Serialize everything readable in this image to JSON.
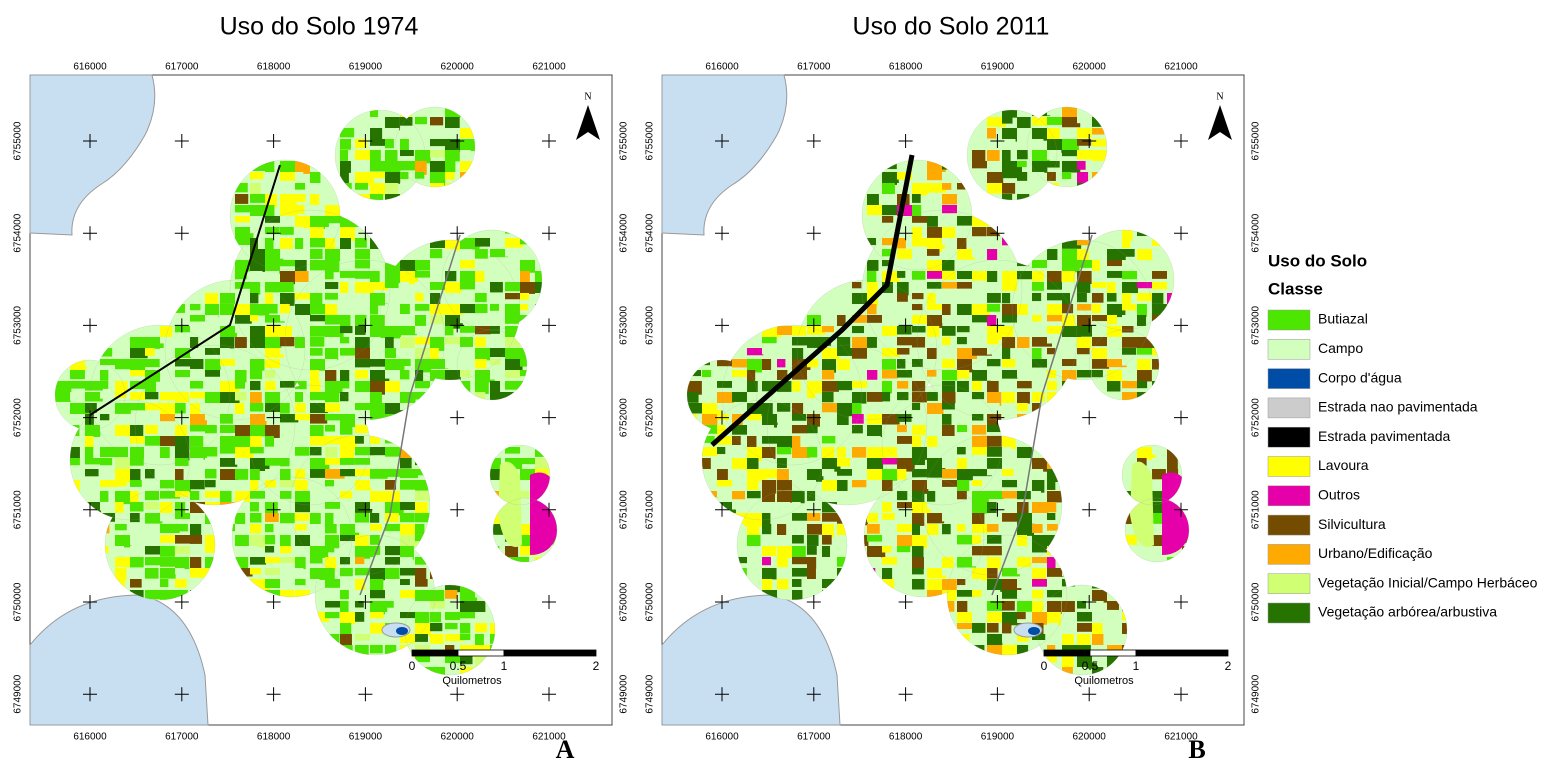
{
  "maps": [
    {
      "title": "Uso do Solo 1974",
      "panel": "A",
      "north": "N",
      "xticks": [
        616000,
        617000,
        618000,
        619000,
        620000,
        621000
      ],
      "yticks": [
        6755000,
        6754000,
        6753000,
        6752000,
        6751000,
        6750000,
        6749000
      ],
      "scale_ticks": [
        0,
        0.5,
        1,
        2
      ],
      "scale_unit": "Quilometros"
    },
    {
      "title": "Uso do Solo 2011",
      "panel": "B",
      "north": "N",
      "xticks": [
        616000,
        617000,
        618000,
        619000,
        620000,
        621000
      ],
      "yticks": [
        6755000,
        6754000,
        6753000,
        6752000,
        6751000,
        6750000,
        6749000
      ],
      "scale_ticks": [
        0,
        0.5,
        1,
        2
      ],
      "scale_unit": "Quilometros"
    }
  ],
  "legend": {
    "title": "Uso do Solo",
    "subtitle": "Classe",
    "items": [
      {
        "name": "Butiazal",
        "color": "#4ce600"
      },
      {
        "name": "Campo",
        "color": "#d3ffbe"
      },
      {
        "name": "Corpo d'água",
        "color": "#004da8"
      },
      {
        "name": "Estrada nao pavimentada",
        "color": "#cccccc"
      },
      {
        "name": "Estrada pavimentada",
        "color": "#000000"
      },
      {
        "name": "Lavoura",
        "color": "#ffff00"
      },
      {
        "name": "Outros",
        "color": "#e600a9"
      },
      {
        "name": "Silvicultura",
        "color": "#734c00"
      },
      {
        "name": "Urbano/Edificação",
        "color": "#ffaa00"
      },
      {
        "name": "Vegetação Inicial/Campo Herbáceo",
        "color": "#d1ff73"
      },
      {
        "name": "Vegetação arbórea/arbustiva",
        "color": "#267300"
      }
    ]
  }
}
